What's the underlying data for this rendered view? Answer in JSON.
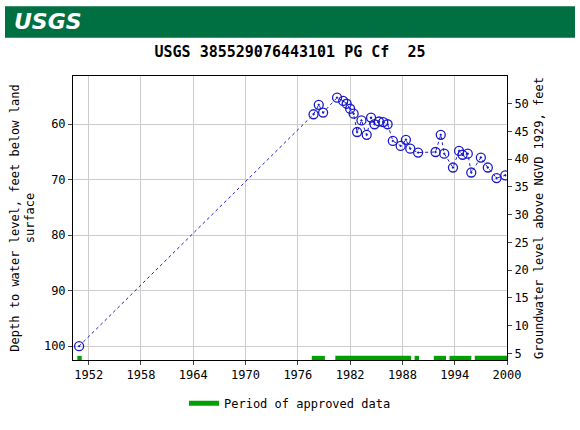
{
  "chart_data": {
    "type": "scatter",
    "header": "USGS",
    "title": "USGS 385529076443101 PG Cf  25",
    "y_label": "Depth to water level, feet below land\nsurface",
    "y2_label": "Groundwater level above NGVD 1929, feet",
    "xlim": [
      1950.2,
      2000
    ],
    "xticks": [
      1952,
      1958,
      1964,
      1970,
      1976,
      1982,
      1988,
      1994,
      2000
    ],
    "ylim": [
      102.5,
      51.3
    ],
    "yticks": [
      60,
      70,
      80,
      90,
      100
    ],
    "y2lim": [
      3.8,
      55
    ],
    "y2ticks": [
      5,
      10,
      15,
      20,
      25,
      30,
      35,
      40,
      45,
      50
    ],
    "grid": true,
    "legend": "bottom",
    "series": [
      {
        "color": "#1a1acc",
        "marker": "circle-open-dot",
        "line_style": "dotted",
        "x": [
          1950.9,
          1977.8,
          1978.4,
          1978.9,
          1980.5,
          1981.2,
          1981.6,
          1982.0,
          1982.4,
          1982.8,
          1983.3,
          1983.9,
          1984.4,
          1984.8,
          1985.3,
          1985.8,
          1986.3,
          1986.9,
          1987.8,
          1988.4,
          1988.9,
          1989.8,
          1991.8,
          1992.4,
          1992.8,
          1993.8,
          1994.5,
          1994.9,
          1995.5,
          1995.9,
          1997.0,
          1997.8,
          1998.8,
          1999.8
        ],
        "values": [
          100,
          58.2,
          56.5,
          57.9,
          55.2,
          55.8,
          56.3,
          57.2,
          58.1,
          61.4,
          59.3,
          61.9,
          58.8,
          60.0,
          59.5,
          59.6,
          60.0,
          63.0,
          63.9,
          62.8,
          64.4,
          65.1,
          65.0,
          61.9,
          65.3,
          67.8,
          64.8,
          65.5,
          65.3,
          68.7,
          66.0,
          67.8,
          69.7,
          69.2
        ]
      },
      {
        "name": "Period of approved data",
        "color": "#00a000",
        "marker": "none",
        "line_style": "solid",
        "x": [
          1950.7,
          1951.2,
          1951.2,
          1977.6,
          1979.1,
          1979.1,
          1980.3,
          1989.0,
          1989.0,
          1989.4,
          1989.9,
          1989.9,
          1991.6,
          1993.0,
          1993.0,
          1993.4,
          1995.9,
          1995.9,
          1996.3,
          2000
        ],
        "values": [
          102.2,
          102.2,
          null,
          102.2,
          102.2,
          null,
          102.2,
          102.2,
          null,
          102.2,
          102.2,
          null,
          102.2,
          102.2,
          null,
          102.2,
          102.2,
          null,
          102.2,
          102.2
        ]
      }
    ]
  }
}
